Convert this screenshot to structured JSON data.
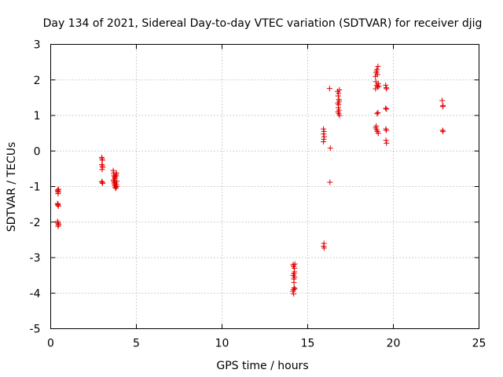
{
  "chart_data": {
    "type": "scatter",
    "title": "Day 134 of 2021, Sidereal Day-to-day VTEC variation (SDTVAR) for receiver djig",
    "xlabel": "GPS time / hours",
    "ylabel": "SDTVAR / TECUs",
    "xlim": [
      0,
      25
    ],
    "ylim": [
      -5,
      3
    ],
    "xticks": [
      "0",
      "5",
      "10",
      "15",
      "20",
      "25"
    ],
    "yticks": [
      "3",
      "2",
      "1",
      "0",
      "-1",
      "-2",
      "-3",
      "-4",
      "-5"
    ],
    "grid": true,
    "marker": "+",
    "color": "#e00000",
    "series": [
      {
        "name": "SDTVAR",
        "points": [
          [
            0.4,
            -1.1
          ],
          [
            0.42,
            -1.13
          ],
          [
            0.44,
            -1.16
          ],
          [
            0.46,
            -1.08
          ],
          [
            0.43,
            -1.2
          ],
          [
            0.4,
            -1.48
          ],
          [
            0.42,
            -1.52
          ],
          [
            0.45,
            -1.55
          ],
          [
            0.43,
            -1.5
          ],
          [
            0.4,
            -1.98
          ],
          [
            0.42,
            -2.02
          ],
          [
            0.44,
            -2.05
          ],
          [
            0.46,
            -2.08
          ],
          [
            0.43,
            -2.12
          ],
          [
            2.98,
            -0.18
          ],
          [
            3.0,
            -0.22
          ],
          [
            3.02,
            -0.26
          ],
          [
            2.99,
            -0.38
          ],
          [
            3.01,
            -0.42
          ],
          [
            3.03,
            -0.46
          ],
          [
            3.0,
            -0.52
          ],
          [
            2.98,
            -0.86
          ],
          [
            3.01,
            -0.88
          ],
          [
            3.03,
            -0.91
          ],
          [
            3.65,
            -0.55
          ],
          [
            3.68,
            -0.62
          ],
          [
            3.7,
            -0.68
          ],
          [
            3.72,
            -0.72
          ],
          [
            3.74,
            -0.78
          ],
          [
            3.66,
            -0.82
          ],
          [
            3.69,
            -0.86
          ],
          [
            3.71,
            -0.9
          ],
          [
            3.73,
            -0.94
          ],
          [
            3.75,
            -0.98
          ],
          [
            3.77,
            -1.02
          ],
          [
            3.8,
            -1.05
          ],
          [
            3.82,
            -0.7
          ],
          [
            3.84,
            -0.62
          ],
          [
            3.86,
            -0.85
          ],
          [
            3.78,
            -0.9
          ],
          [
            3.81,
            -0.66
          ],
          [
            3.83,
            -0.95
          ],
          [
            3.85,
            -1.0
          ],
          [
            3.76,
            -0.74
          ],
          [
            14.15,
            -3.2
          ],
          [
            14.18,
            -3.25
          ],
          [
            14.22,
            -3.3
          ],
          [
            14.25,
            -3.18
          ],
          [
            14.2,
            -3.45
          ],
          [
            14.16,
            -3.5
          ],
          [
            14.24,
            -3.55
          ],
          [
            14.19,
            -3.6
          ],
          [
            14.23,
            -3.4
          ],
          [
            14.21,
            -3.85
          ],
          [
            14.17,
            -3.9
          ],
          [
            14.25,
            -3.88
          ],
          [
            14.14,
            -3.95
          ],
          [
            14.18,
            -4.02
          ],
          [
            14.2,
            -3.7
          ],
          [
            15.92,
            0.62
          ],
          [
            15.95,
            0.55
          ],
          [
            15.93,
            0.48
          ],
          [
            15.96,
            0.4
          ],
          [
            15.94,
            0.33
          ],
          [
            15.92,
            0.26
          ],
          [
            15.95,
            -2.6
          ],
          [
            15.93,
            -2.68
          ],
          [
            15.96,
            -2.73
          ],
          [
            16.28,
            1.76
          ],
          [
            16.32,
            0.08
          ],
          [
            16.3,
            -0.88
          ],
          [
            16.75,
            1.68
          ],
          [
            16.8,
            1.62
          ],
          [
            16.85,
            1.72
          ],
          [
            16.78,
            1.55
          ],
          [
            16.82,
            1.45
          ],
          [
            16.76,
            1.35
          ],
          [
            16.84,
            1.4
          ],
          [
            16.79,
            1.22
          ],
          [
            16.83,
            1.15
          ],
          [
            16.77,
            1.1
          ],
          [
            16.81,
            1.05
          ],
          [
            16.86,
            1.0
          ],
          [
            16.8,
            1.3
          ],
          [
            18.95,
            2.1
          ],
          [
            19.0,
            2.2
          ],
          [
            19.05,
            2.3
          ],
          [
            19.1,
            2.38
          ],
          [
            19.02,
            2.25
          ],
          [
            19.07,
            2.15
          ],
          [
            18.98,
            1.95
          ],
          [
            19.03,
            1.85
          ],
          [
            19.08,
            1.8
          ],
          [
            18.96,
            1.75
          ],
          [
            19.12,
            1.9
          ],
          [
            19.15,
            1.82
          ],
          [
            19.05,
            1.05
          ],
          [
            19.1,
            1.08
          ],
          [
            18.97,
            0.65
          ],
          [
            19.02,
            0.6
          ],
          [
            19.07,
            0.55
          ],
          [
            19.12,
            0.5
          ],
          [
            19.0,
            0.7
          ],
          [
            19.55,
            1.85
          ],
          [
            19.58,
            1.78
          ],
          [
            19.6,
            1.75
          ],
          [
            19.55,
            1.2
          ],
          [
            19.6,
            1.18
          ],
          [
            19.56,
            0.62
          ],
          [
            19.59,
            0.58
          ],
          [
            19.57,
            0.3
          ],
          [
            19.6,
            0.22
          ],
          [
            22.85,
            1.42
          ],
          [
            22.9,
            1.28
          ],
          [
            22.88,
            1.25
          ],
          [
            22.87,
            0.58
          ],
          [
            22.9,
            0.55
          ]
        ]
      }
    ]
  }
}
